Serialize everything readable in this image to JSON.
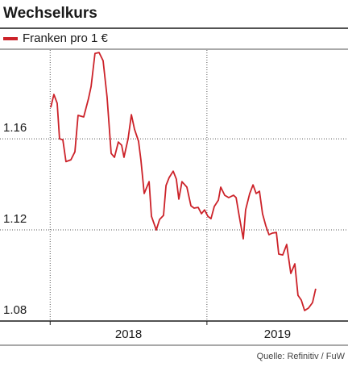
{
  "chart_data": {
    "type": "line",
    "title": "Wechselkurs",
    "source": "Quelle: Refinitiv / FuW",
    "xlim": [
      2017.68,
      2019.9
    ],
    "xticks": [
      2018,
      2019
    ],
    "ylim": [
      1.08,
      1.199
    ],
    "yticks": [
      1.08,
      1.12,
      1.16
    ],
    "grid": true,
    "series": [
      {
        "name": "Franken pro 1 €",
        "color": "#cc2229",
        "x": [
          2018.004,
          2018.024,
          2018.045,
          2018.06,
          2018.081,
          2018.101,
          2018.132,
          2018.158,
          2018.178,
          2018.214,
          2018.245,
          2018.261,
          2018.286,
          2018.312,
          2018.338,
          2018.363,
          2018.389,
          2018.41,
          2018.435,
          2018.456,
          2018.471,
          2018.497,
          2018.518,
          2018.538,
          2018.564,
          2018.579,
          2018.6,
          2018.631,
          2018.646,
          2018.677,
          2018.698,
          2018.723,
          2018.739,
          2018.759,
          2018.785,
          2018.805,
          2018.821,
          2018.841,
          2018.872,
          2018.898,
          2018.918,
          2018.944,
          2018.965,
          2018.985,
          2019.006,
          2019.026,
          2019.047,
          2019.073,
          2019.088,
          2019.114,
          2019.139,
          2019.17,
          2019.186,
          2019.206,
          2019.232,
          2019.247,
          2019.273,
          2019.294,
          2019.314,
          2019.335,
          2019.355,
          2019.376,
          2019.396,
          2019.417,
          2019.443,
          2019.458,
          2019.484,
          2019.509,
          2019.535,
          2019.561,
          2019.581,
          2019.602,
          2019.623,
          2019.648,
          2019.674,
          2019.694
        ],
        "values": [
          1.1738,
          1.1795,
          1.1756,
          1.16,
          1.1596,
          1.15,
          1.1508,
          1.1543,
          1.1703,
          1.1696,
          1.1777,
          1.183,
          1.1975,
          1.1979,
          1.1943,
          1.1784,
          1.1536,
          1.1519,
          1.1586,
          1.1572,
          1.1519,
          1.16,
          1.1706,
          1.1642,
          1.1589,
          1.1508,
          1.136,
          1.1412,
          1.126,
          1.12,
          1.1246,
          1.1264,
          1.1395,
          1.143,
          1.1458,
          1.1423,
          1.1335,
          1.1412,
          1.1388,
          1.1306,
          1.1296,
          1.1299,
          1.1271,
          1.1288,
          1.126,
          1.1249,
          1.1303,
          1.1331,
          1.1388,
          1.1352,
          1.1342,
          1.1352,
          1.1342,
          1.126,
          1.1161,
          1.1288,
          1.136,
          1.1398,
          1.136,
          1.137,
          1.1271,
          1.1218,
          1.1179,
          1.1186,
          1.1189,
          1.1094,
          1.109,
          1.1136,
          1.1009,
          1.1051,
          1.0913,
          1.0892,
          1.0846,
          1.0857,
          1.0881,
          1.0942
        ]
      }
    ]
  }
}
